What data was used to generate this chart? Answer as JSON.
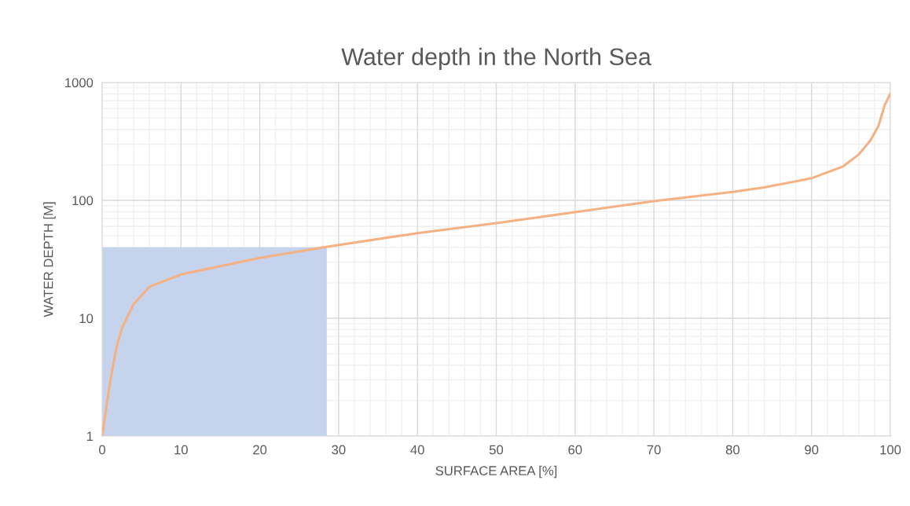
{
  "chart_data": {
    "type": "line",
    "title": "Water depth in the North Sea",
    "xlabel": "SURFACE AREA [%]",
    "ylabel": "WATER DEPTH [M]",
    "log": "y",
    "grid": true,
    "legend": false,
    "xlim": [
      0,
      100
    ],
    "xticks": [
      0,
      10,
      20,
      30,
      40,
      50,
      60,
      70,
      80,
      90,
      100
    ],
    "ylim": [
      1,
      1000
    ],
    "yticks": [
      1,
      10,
      100,
      1000
    ],
    "series": [
      {
        "type": "area",
        "color": "#c5d3ed",
        "x": [
          0,
          28.5
        ],
        "values": [
          40,
          40
        ]
      },
      {
        "color": "#f4b183",
        "x": [
          0,
          1.0,
          1.8,
          2.5,
          4.0,
          6.0,
          10,
          20,
          28.4,
          40,
          50,
          60,
          70,
          80,
          84,
          90,
          94,
          96,
          97.5,
          98.5,
          99.3,
          100
        ],
        "values": [
          1,
          2.85,
          5.6,
          8.2,
          13.2,
          18.5,
          23.5,
          32.5,
          40.3,
          52.7,
          64,
          79.4,
          98.5,
          118,
          129,
          154,
          194,
          245,
          325,
          430,
          647,
          802
        ]
      }
    ]
  }
}
